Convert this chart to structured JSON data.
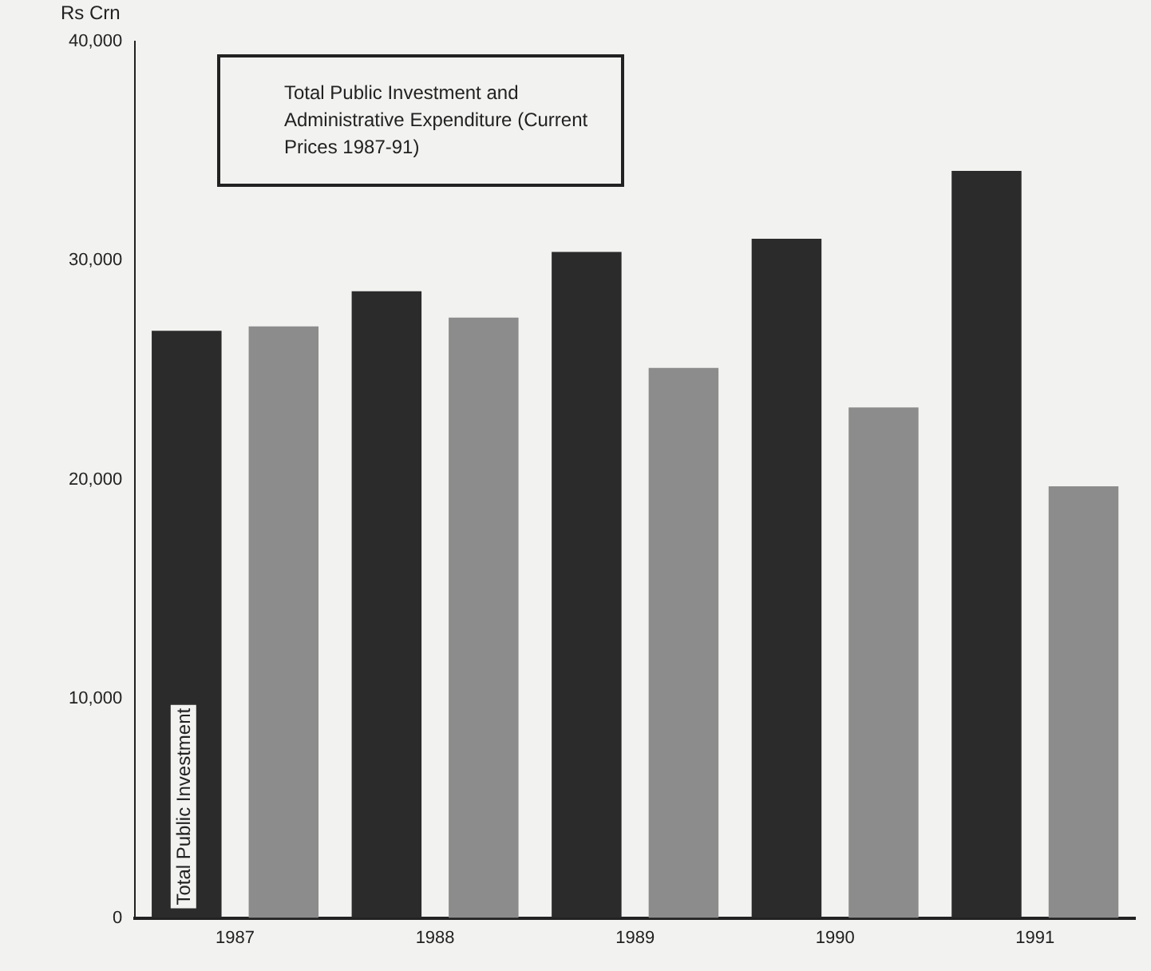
{
  "chart_data": {
    "type": "bar",
    "title": "Total Public Investment and Administrative Expenditure (Current Prices 1987-91)",
    "ylabel": "Rs Crn",
    "categories": [
      "1987",
      "1988",
      "1989",
      "1990",
      "1991"
    ],
    "series": [
      {
        "name": "Total Public Investment",
        "color": "#2b2b2b",
        "values": [
          26800,
          28600,
          30400,
          31000,
          34100
        ]
      },
      {
        "color": "#8c8c8c",
        "values": [
          27000,
          27400,
          25100,
          23300,
          19700
        ]
      }
    ],
    "ylim": [
      0,
      40000
    ],
    "yticks": [
      0,
      {
        "value": 10000,
        "label": "10,000"
      },
      {
        "value": 20000,
        "label": "20,000"
      },
      {
        "value": 30000,
        "label": "30,000"
      },
      {
        "value": 40000,
        "label": "40,000"
      }
    ],
    "grid": false,
    "legend": false
  }
}
